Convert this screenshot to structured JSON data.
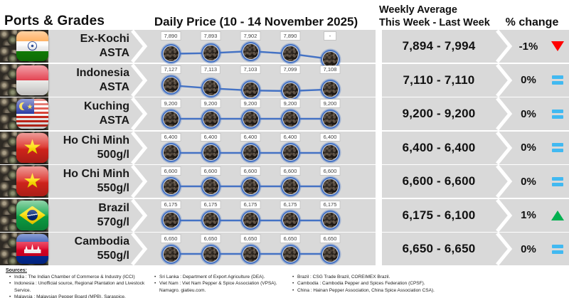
{
  "header": {
    "ports_grades": "Ports & Grades",
    "daily_price": "Daily Price (10 - 14 November 2025)",
    "weekly_avg_line1": "Weekly Average",
    "weekly_avg_line2": "This Week - Last Week",
    "pct_change": "% change"
  },
  "colors": {
    "row_bg": "#d9d9d9",
    "line_blue": "#4472c4",
    "up": "#00b050",
    "down": "#ff0000",
    "eq": "#41b9f1"
  },
  "rows": [
    {
      "port": "Ex-Kochi",
      "grade": "ASTA",
      "flag": "india",
      "daily_labels": [
        "7,890",
        "7,893",
        "7,902",
        "7,890",
        "-"
      ],
      "daily_values": [
        7890,
        7893,
        7902,
        7890,
        null
      ],
      "weekly": "7,894 - 7,994",
      "pct": "-1%",
      "trend": "down"
    },
    {
      "port": "Indonesia",
      "grade": "ASTA",
      "flag": "indonesia",
      "daily_labels": [
        "7,127",
        "7,113",
        "7,103",
        "7,099",
        "7,108"
      ],
      "daily_values": [
        7127,
        7113,
        7103,
        7099,
        7108
      ],
      "weekly": "7,110 - 7,110",
      "pct": "0%",
      "trend": "equal"
    },
    {
      "port": "Kuching",
      "grade": "ASTA",
      "flag": "malaysia",
      "daily_labels": [
        "9,200",
        "9,200",
        "9,200",
        "9,200",
        "9,200"
      ],
      "daily_values": [
        9200,
        9200,
        9200,
        9200,
        9200
      ],
      "weekly": "9,200 - 9,200",
      "pct": "0%",
      "trend": "equal"
    },
    {
      "port": "Ho Chi Minh",
      "grade": "500g/l",
      "flag": "vietnam",
      "daily_labels": [
        "6,400",
        "6,400",
        "6,400",
        "6,400",
        "6,400"
      ],
      "daily_values": [
        6400,
        6400,
        6400,
        6400,
        6400
      ],
      "weekly": "6,400 - 6,400",
      "pct": "0%",
      "trend": "equal"
    },
    {
      "port": "Ho Chi Minh",
      "grade": "550g/l",
      "flag": "vietnam",
      "daily_labels": [
        "6,600",
        "6,600",
        "6,600",
        "6,600",
        "6,600"
      ],
      "daily_values": [
        6600,
        6600,
        6600,
        6600,
        6600
      ],
      "weekly": "6,600 - 6,600",
      "pct": "0%",
      "trend": "equal"
    },
    {
      "port": "Brazil",
      "grade": "570g/l",
      "flag": "brazil",
      "daily_labels": [
        "6,175",
        "6,175",
        "6,175",
        "6,175",
        "6,175"
      ],
      "daily_values": [
        6175,
        6175,
        6175,
        6175,
        6175
      ],
      "weekly": "6,175 - 6,100",
      "pct": "1%",
      "trend": "up"
    },
    {
      "port": "Cambodia",
      "grade": "550g/l",
      "flag": "cambodia",
      "daily_labels": [
        "6,650",
        "6,650",
        "6,650",
        "6,650",
        "6,650"
      ],
      "daily_values": [
        6650,
        6650,
        6650,
        6650,
        6650
      ],
      "weekly": "6,650 - 6,650",
      "pct": "0%",
      "trend": "equal"
    }
  ],
  "footer": {
    "title": "Sources:",
    "col1": [
      "India : The Indian Chamber of Commerce & Industry (ICCI)",
      "Indonesia : Unofficial source, Regional Plantation and Livestock Service.",
      "Malaysia : Malaysian Pepper Board (MPB), Saraspice."
    ],
    "col2": [
      "Sri Lanka : Department of Export Agriculture (DEA).",
      "Viet Nam : Viet Nam Pepper & Spice Association (VPSA). Namagro. giatieu.com."
    ],
    "col3": [
      "Brazil : CSG Trade Brazil, COREIMEX Brazil.",
      "Cambodia : Cambodia Pepper and Spices Federation (CPSF).",
      "China : Hainan Pepper Association, China Spice Association CSA)."
    ]
  },
  "chart_data": {
    "type": "table",
    "title": "Daily Price (10 - 14 November 2025)",
    "columns": [
      "Ports & Grades",
      "Daily Price (10 - 14 November 2025)",
      "Weekly Average This Week - Last Week",
      "% change"
    ],
    "series": [
      {
        "name": "Ex-Kochi ASTA",
        "type": "line",
        "values": [
          7890,
          7893,
          7902,
          7890,
          null
        ],
        "weekly_average_this_week": 7894,
        "weekly_average_last_week": 7994,
        "pct_change": "-1%",
        "trend": "down"
      },
      {
        "name": "Indonesia ASTA",
        "type": "line",
        "values": [
          7127,
          7113,
          7103,
          7099,
          7108
        ],
        "weekly_average_this_week": 7110,
        "weekly_average_last_week": 7110,
        "pct_change": "0%",
        "trend": "equal"
      },
      {
        "name": "Kuching ASTA",
        "type": "line",
        "values": [
          9200,
          9200,
          9200,
          9200,
          9200
        ],
        "weekly_average_this_week": 9200,
        "weekly_average_last_week": 9200,
        "pct_change": "0%",
        "trend": "equal"
      },
      {
        "name": "Ho Chi Minh 500g/l",
        "type": "line",
        "values": [
          6400,
          6400,
          6400,
          6400,
          6400
        ],
        "weekly_average_this_week": 6400,
        "weekly_average_last_week": 6400,
        "pct_change": "0%",
        "trend": "equal"
      },
      {
        "name": "Ho Chi Minh 550g/l",
        "type": "line",
        "values": [
          6600,
          6600,
          6600,
          6600,
          6600
        ],
        "weekly_average_this_week": 6600,
        "weekly_average_last_week": 6600,
        "pct_change": "0%",
        "trend": "equal"
      },
      {
        "name": "Brazil 570g/l",
        "type": "line",
        "values": [
          6175,
          6175,
          6175,
          6175,
          6175
        ],
        "weekly_average_this_week": 6175,
        "weekly_average_last_week": 6100,
        "pct_change": "1%",
        "trend": "up"
      },
      {
        "name": "Cambodia 550g/l",
        "type": "line",
        "values": [
          6650,
          6650,
          6650,
          6650,
          6650
        ],
        "weekly_average_this_week": 6650,
        "weekly_average_last_week": 6650,
        "pct_change": "0%",
        "trend": "equal"
      }
    ]
  }
}
